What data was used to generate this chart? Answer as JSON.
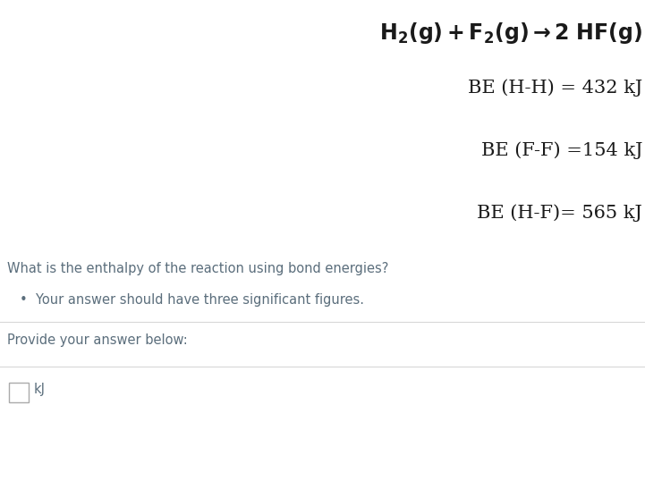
{
  "be_hh": "BE (H-H) = 432 kJ",
  "be_ff": "BE (F-F) =154 kJ",
  "be_hf": "BE (H-F)= 565 kJ",
  "question": "What is the enthalpy of the reaction using bond energies?",
  "bullet_text": "Your answer should have three significant figures.",
  "provide": "Provide your answer below:",
  "unit_label": "kJ",
  "bg_color": "#ffffff",
  "title_color": "#1a1a1a",
  "body_color": "#1a1a1a",
  "question_color": "#5b6e7c",
  "bullet_color": "#5b6e7c",
  "provide_color": "#5b6e7c",
  "unit_color": "#5b6e7c",
  "separator_color": "#d8d8d8",
  "title_fontsize": 17,
  "be_fontsize": 15,
  "question_fontsize": 10.5,
  "bullet_fontsize": 10.5,
  "provide_fontsize": 10.5,
  "unit_fontsize": 10.5
}
